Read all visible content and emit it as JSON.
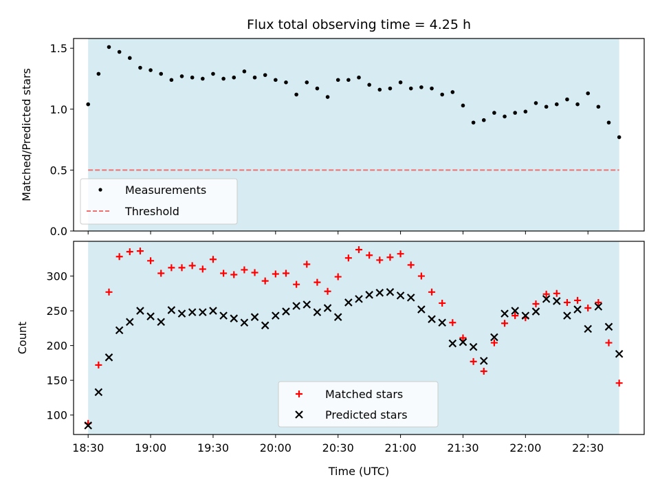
{
  "chart_data": [
    {
      "type": "scatter",
      "title": "Flux total observing time = 4.25 h",
      "ylabel": "Matched/Predicted stars",
      "xlabel": "",
      "ylim": [
        0,
        1.58
      ],
      "yticks": [
        0.0,
        0.5,
        1.0,
        1.5
      ],
      "ytick_labels": [
        "0.0",
        "0.5",
        "1.0",
        "1.5"
      ],
      "x_time_range": [
        "18:23",
        "22:57"
      ],
      "observing_window": [
        "18:30",
        "22:45"
      ],
      "legend_position": "lower-left",
      "threshold": {
        "name": "Threshold",
        "y": 0.5,
        "color": "#f07070",
        "style": "dashed"
      },
      "series": [
        {
          "name": "Measurements",
          "color": "#000000",
          "marker": "dot",
          "x": [
            "18:30",
            "18:35",
            "18:40",
            "18:45",
            "18:50",
            "18:55",
            "19:00",
            "19:05",
            "19:10",
            "19:15",
            "19:20",
            "19:25",
            "19:30",
            "19:35",
            "19:40",
            "19:45",
            "19:50",
            "19:55",
            "20:00",
            "20:05",
            "20:10",
            "20:15",
            "20:20",
            "20:25",
            "20:30",
            "20:35",
            "20:40",
            "20:45",
            "20:50",
            "20:55",
            "21:00",
            "21:05",
            "21:10",
            "21:15",
            "21:20",
            "21:25",
            "21:30",
            "21:35",
            "21:40",
            "21:45",
            "21:50",
            "21:55",
            "22:00",
            "22:05",
            "22:10",
            "22:15",
            "22:20",
            "22:25",
            "22:30",
            "22:35",
            "22:40",
            "22:45"
          ],
          "y": [
            1.04,
            1.29,
            1.51,
            1.47,
            1.42,
            1.34,
            1.32,
            1.29,
            1.24,
            1.27,
            1.26,
            1.25,
            1.29,
            1.25,
            1.26,
            1.31,
            1.26,
            1.28,
            1.24,
            1.22,
            1.12,
            1.22,
            1.17,
            1.1,
            1.24,
            1.24,
            1.26,
            1.2,
            1.16,
            1.17,
            1.22,
            1.17,
            1.18,
            1.17,
            1.12,
            1.14,
            1.03,
            0.89,
            0.91,
            0.97,
            0.94,
            0.97,
            0.98,
            1.05,
            1.02,
            1.04,
            1.08,
            1.04,
            1.13,
            1.02,
            0.89,
            0.77
          ]
        }
      ]
    },
    {
      "type": "scatter",
      "title": "",
      "ylabel": "Count",
      "xlabel": "Time (UTC)",
      "ylim": [
        72,
        350
      ],
      "yticks": [
        100,
        150,
        200,
        250,
        300
      ],
      "ytick_labels": [
        "100",
        "150",
        "200",
        "250",
        "300"
      ],
      "x_time_range": [
        "18:23",
        "22:57"
      ],
      "xticks": [
        "18:30",
        "19:00",
        "19:30",
        "20:00",
        "20:30",
        "21:00",
        "21:30",
        "22:00",
        "22:30"
      ],
      "xtick_labels": [
        "18:30",
        "19:00",
        "19:30",
        "20:00",
        "20:30",
        "21:00",
        "21:30",
        "22:00",
        "22:30"
      ],
      "observing_window": [
        "18:30",
        "22:45"
      ],
      "legend_position": "lower-center",
      "series": [
        {
          "name": "Matched stars",
          "color": "#ff0000",
          "marker": "plus",
          "x": [
            "18:30",
            "18:35",
            "18:40",
            "18:45",
            "18:50",
            "18:55",
            "19:00",
            "19:05",
            "19:10",
            "19:15",
            "19:20",
            "19:25",
            "19:30",
            "19:35",
            "19:40",
            "19:45",
            "19:50",
            "19:55",
            "20:00",
            "20:05",
            "20:10",
            "20:15",
            "20:20",
            "20:25",
            "20:30",
            "20:35",
            "20:40",
            "20:45",
            "20:50",
            "20:55",
            "21:00",
            "21:05",
            "21:10",
            "21:15",
            "21:20",
            "21:25",
            "21:30",
            "21:35",
            "21:40",
            "21:45",
            "21:50",
            "21:55",
            "22:00",
            "22:05",
            "22:10",
            "22:15",
            "22:20",
            "22:25",
            "22:30",
            "22:35",
            "22:40",
            "22:45"
          ],
          "y": [
            88,
            172,
            277,
            328,
            335,
            336,
            322,
            304,
            312,
            312,
            315,
            310,
            324,
            304,
            302,
            309,
            305,
            293,
            303,
            304,
            288,
            317,
            291,
            278,
            299,
            326,
            338,
            330,
            323,
            327,
            332,
            316,
            300,
            277,
            261,
            233,
            211,
            177,
            163,
            204,
            232,
            243,
            240,
            260,
            274,
            275,
            262,
            265,
            254,
            262,
            204,
            146
          ]
        },
        {
          "name": "Predicted stars",
          "color": "#000000",
          "marker": "x",
          "x": [
            "18:30",
            "18:35",
            "18:40",
            "18:45",
            "18:50",
            "18:55",
            "19:00",
            "19:05",
            "19:10",
            "19:15",
            "19:20",
            "19:25",
            "19:30",
            "19:35",
            "19:40",
            "19:45",
            "19:50",
            "19:55",
            "20:00",
            "20:05",
            "20:10",
            "20:15",
            "20:20",
            "20:25",
            "20:30",
            "20:35",
            "20:40",
            "20:45",
            "20:50",
            "20:55",
            "21:00",
            "21:05",
            "21:10",
            "21:15",
            "21:20",
            "21:25",
            "21:30",
            "21:35",
            "21:40",
            "21:45",
            "21:50",
            "21:55",
            "22:00",
            "22:05",
            "22:10",
            "22:15",
            "22:20",
            "22:25",
            "22:30",
            "22:35",
            "22:40",
            "22:45"
          ],
          "y": [
            85,
            133,
            183,
            222,
            234,
            250,
            242,
            234,
            251,
            246,
            248,
            248,
            250,
            243,
            239,
            233,
            241,
            229,
            243,
            249,
            257,
            259,
            248,
            254,
            241,
            262,
            267,
            273,
            276,
            277,
            272,
            269,
            252,
            238,
            233,
            203,
            205,
            198,
            178,
            212,
            246,
            250,
            243,
            249,
            267,
            264,
            243,
            252,
            224,
            256,
            227,
            188
          ]
        }
      ]
    }
  ]
}
